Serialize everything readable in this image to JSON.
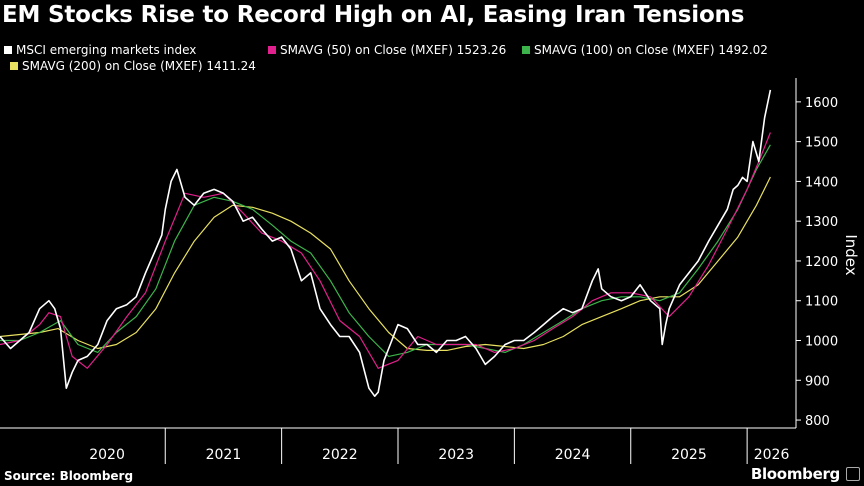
{
  "title": "EM Stocks Rise to Record High on AI, Easing Iran Tensions",
  "legend": [
    {
      "label": "MSCI emerging markets index",
      "color": "#ffffff"
    },
    {
      "label": "SMAVG (50)  on Close (MXEF) 1523.26",
      "color": "#e0208c"
    },
    {
      "label": "SMAVG (100)  on Close (MXEF) 1492.02",
      "color": "#3cb44b"
    },
    {
      "label": "SMAVG (200)  on Close (MXEF) 1411.24",
      "color": "#e8e060"
    }
  ],
  "source": "Source: Bloomberg",
  "brand": "Bloomberg",
  "chart_data": {
    "type": "line",
    "ylabel": "Index",
    "ylim": [
      780,
      1660
    ],
    "xlim": [
      2019.58,
      2026.42
    ],
    "y_ticks": [
      800,
      900,
      1000,
      1100,
      1200,
      1300,
      1400,
      1500,
      1600
    ],
    "x_ticks": [
      "2020",
      "2021",
      "2022",
      "2023",
      "2024",
      "2025",
      "2026"
    ],
    "grid": false,
    "series": [
      {
        "name": "MSCI emerging markets index",
        "color": "#ffffff",
        "x": [
          2019.58,
          2019.67,
          2019.75,
          2019.83,
          2019.92,
          2020.0,
          2020.05,
          2020.1,
          2020.15,
          2020.2,
          2020.25,
          2020.33,
          2020.42,
          2020.5,
          2020.58,
          2020.67,
          2020.75,
          2020.83,
          2020.92,
          2020.97,
          2021.0,
          2021.05,
          2021.1,
          2021.17,
          2021.25,
          2021.33,
          2021.42,
          2021.5,
          2021.58,
          2021.67,
          2021.75,
          2021.83,
          2021.92,
          2022.0,
          2022.08,
          2022.17,
          2022.25,
          2022.33,
          2022.42,
          2022.5,
          2022.58,
          2022.67,
          2022.75,
          2022.8,
          2022.83,
          2022.88,
          2022.92,
          2023.0,
          2023.08,
          2023.17,
          2023.25,
          2023.33,
          2023.42,
          2023.5,
          2023.58,
          2023.67,
          2023.75,
          2023.83,
          2023.92,
          2024.0,
          2024.08,
          2024.17,
          2024.25,
          2024.33,
          2024.42,
          2024.5,
          2024.58,
          2024.67,
          2024.72,
          2024.75,
          2024.83,
          2024.92,
          2025.0,
          2025.08,
          2025.17,
          2025.25,
          2025.27,
          2025.3,
          2025.33,
          2025.42,
          2025.5,
          2025.58,
          2025.67,
          2025.75,
          2025.83,
          2025.88,
          2025.92,
          2025.96,
          2026.0,
          2026.05,
          2026.1,
          2026.15,
          2026.2
        ],
        "y": [
          1010,
          980,
          1000,
          1020,
          1080,
          1100,
          1080,
          1030,
          880,
          920,
          950,
          960,
          990,
          1050,
          1080,
          1090,
          1110,
          1170,
          1230,
          1265,
          1330,
          1400,
          1430,
          1360,
          1340,
          1370,
          1380,
          1370,
          1350,
          1300,
          1310,
          1280,
          1250,
          1260,
          1230,
          1150,
          1170,
          1080,
          1040,
          1010,
          1010,
          970,
          880,
          860,
          870,
          950,
          980,
          1040,
          1030,
          990,
          990,
          970,
          1000,
          1000,
          1010,
          980,
          940,
          960,
          990,
          1000,
          1000,
          1020,
          1040,
          1060,
          1080,
          1070,
          1080,
          1150,
          1180,
          1130,
          1110,
          1100,
          1110,
          1140,
          1100,
          1080,
          990,
          1040,
          1080,
          1140,
          1170,
          1200,
          1250,
          1290,
          1330,
          1380,
          1390,
          1410,
          1400,
          1500,
          1450,
          1560,
          1630
        ]
      },
      {
        "name": "SMAVG (50)  on Close (MXEF) 1523.26",
        "color": "#e0208c",
        "x": [
          2019.58,
          2019.75,
          2019.92,
          2020.0,
          2020.1,
          2020.2,
          2020.33,
          2020.5,
          2020.67,
          2020.83,
          2021.0,
          2021.17,
          2021.33,
          2021.5,
          2021.67,
          2021.83,
          2022.0,
          2022.17,
          2022.33,
          2022.5,
          2022.67,
          2022.83,
          2023.0,
          2023.17,
          2023.33,
          2023.5,
          2023.67,
          2023.83,
          2024.0,
          2024.17,
          2024.33,
          2024.5,
          2024.67,
          2024.83,
          2025.0,
          2025.17,
          2025.33,
          2025.5,
          2025.67,
          2025.83,
          2026.0,
          2026.1,
          2026.2
        ],
        "y": [
          990,
          1000,
          1040,
          1070,
          1060,
          960,
          930,
          990,
          1060,
          1120,
          1250,
          1370,
          1360,
          1370,
          1320,
          1270,
          1250,
          1220,
          1150,
          1050,
          1010,
          930,
          950,
          1010,
          990,
          990,
          990,
          970,
          980,
          1000,
          1030,
          1060,
          1100,
          1120,
          1120,
          1110,
          1060,
          1110,
          1190,
          1280,
          1380,
          1450,
          1523
        ]
      },
      {
        "name": "SMAVG (100)  on Close (MXEF) 1492.02",
        "color": "#3cb44b",
        "x": [
          2019.58,
          2019.75,
          2019.92,
          2020.1,
          2020.25,
          2020.42,
          2020.58,
          2020.75,
          2020.92,
          2021.08,
          2021.25,
          2021.42,
          2021.58,
          2021.75,
          2021.92,
          2022.08,
          2022.25,
          2022.42,
          2022.58,
          2022.75,
          2022.92,
          2023.08,
          2023.25,
          2023.42,
          2023.58,
          2023.75,
          2023.92,
          2024.08,
          2024.25,
          2024.42,
          2024.58,
          2024.75,
          2024.92,
          2025.08,
          2025.25,
          2025.42,
          2025.58,
          2025.75,
          2025.92,
          2026.08,
          2026.2
        ],
        "y": [
          1000,
          1000,
          1020,
          1050,
          990,
          970,
          1020,
          1060,
          1130,
          1250,
          1340,
          1360,
          1350,
          1330,
          1290,
          1250,
          1220,
          1150,
          1070,
          1010,
          960,
          970,
          990,
          990,
          990,
          980,
          970,
          990,
          1020,
          1050,
          1080,
          1100,
          1110,
          1110,
          1100,
          1120,
          1180,
          1250,
          1330,
          1430,
          1492
        ]
      },
      {
        "name": "SMAVG (200)  on Close (MXEF) 1411.24",
        "color": "#e8e060",
        "x": [
          2019.58,
          2019.75,
          2019.92,
          2020.08,
          2020.25,
          2020.42,
          2020.58,
          2020.75,
          2020.92,
          2021.08,
          2021.25,
          2021.42,
          2021.58,
          2021.75,
          2021.92,
          2022.08,
          2022.25,
          2022.42,
          2022.58,
          2022.75,
          2022.92,
          2023.08,
          2023.25,
          2023.42,
          2023.58,
          2023.75,
          2023.92,
          2024.08,
          2024.25,
          2024.42,
          2024.58,
          2024.75,
          2024.92,
          2025.08,
          2025.25,
          2025.42,
          2025.58,
          2025.75,
          2025.92,
          2026.08,
          2026.2
        ],
        "y": [
          1010,
          1015,
          1020,
          1030,
          1000,
          980,
          990,
          1020,
          1080,
          1170,
          1250,
          1310,
          1340,
          1335,
          1320,
          1300,
          1270,
          1230,
          1150,
          1080,
          1020,
          980,
          975,
          975,
          985,
          990,
          985,
          980,
          990,
          1010,
          1040,
          1060,
          1080,
          1100,
          1110,
          1110,
          1140,
          1200,
          1260,
          1340,
          1411
        ]
      }
    ]
  }
}
